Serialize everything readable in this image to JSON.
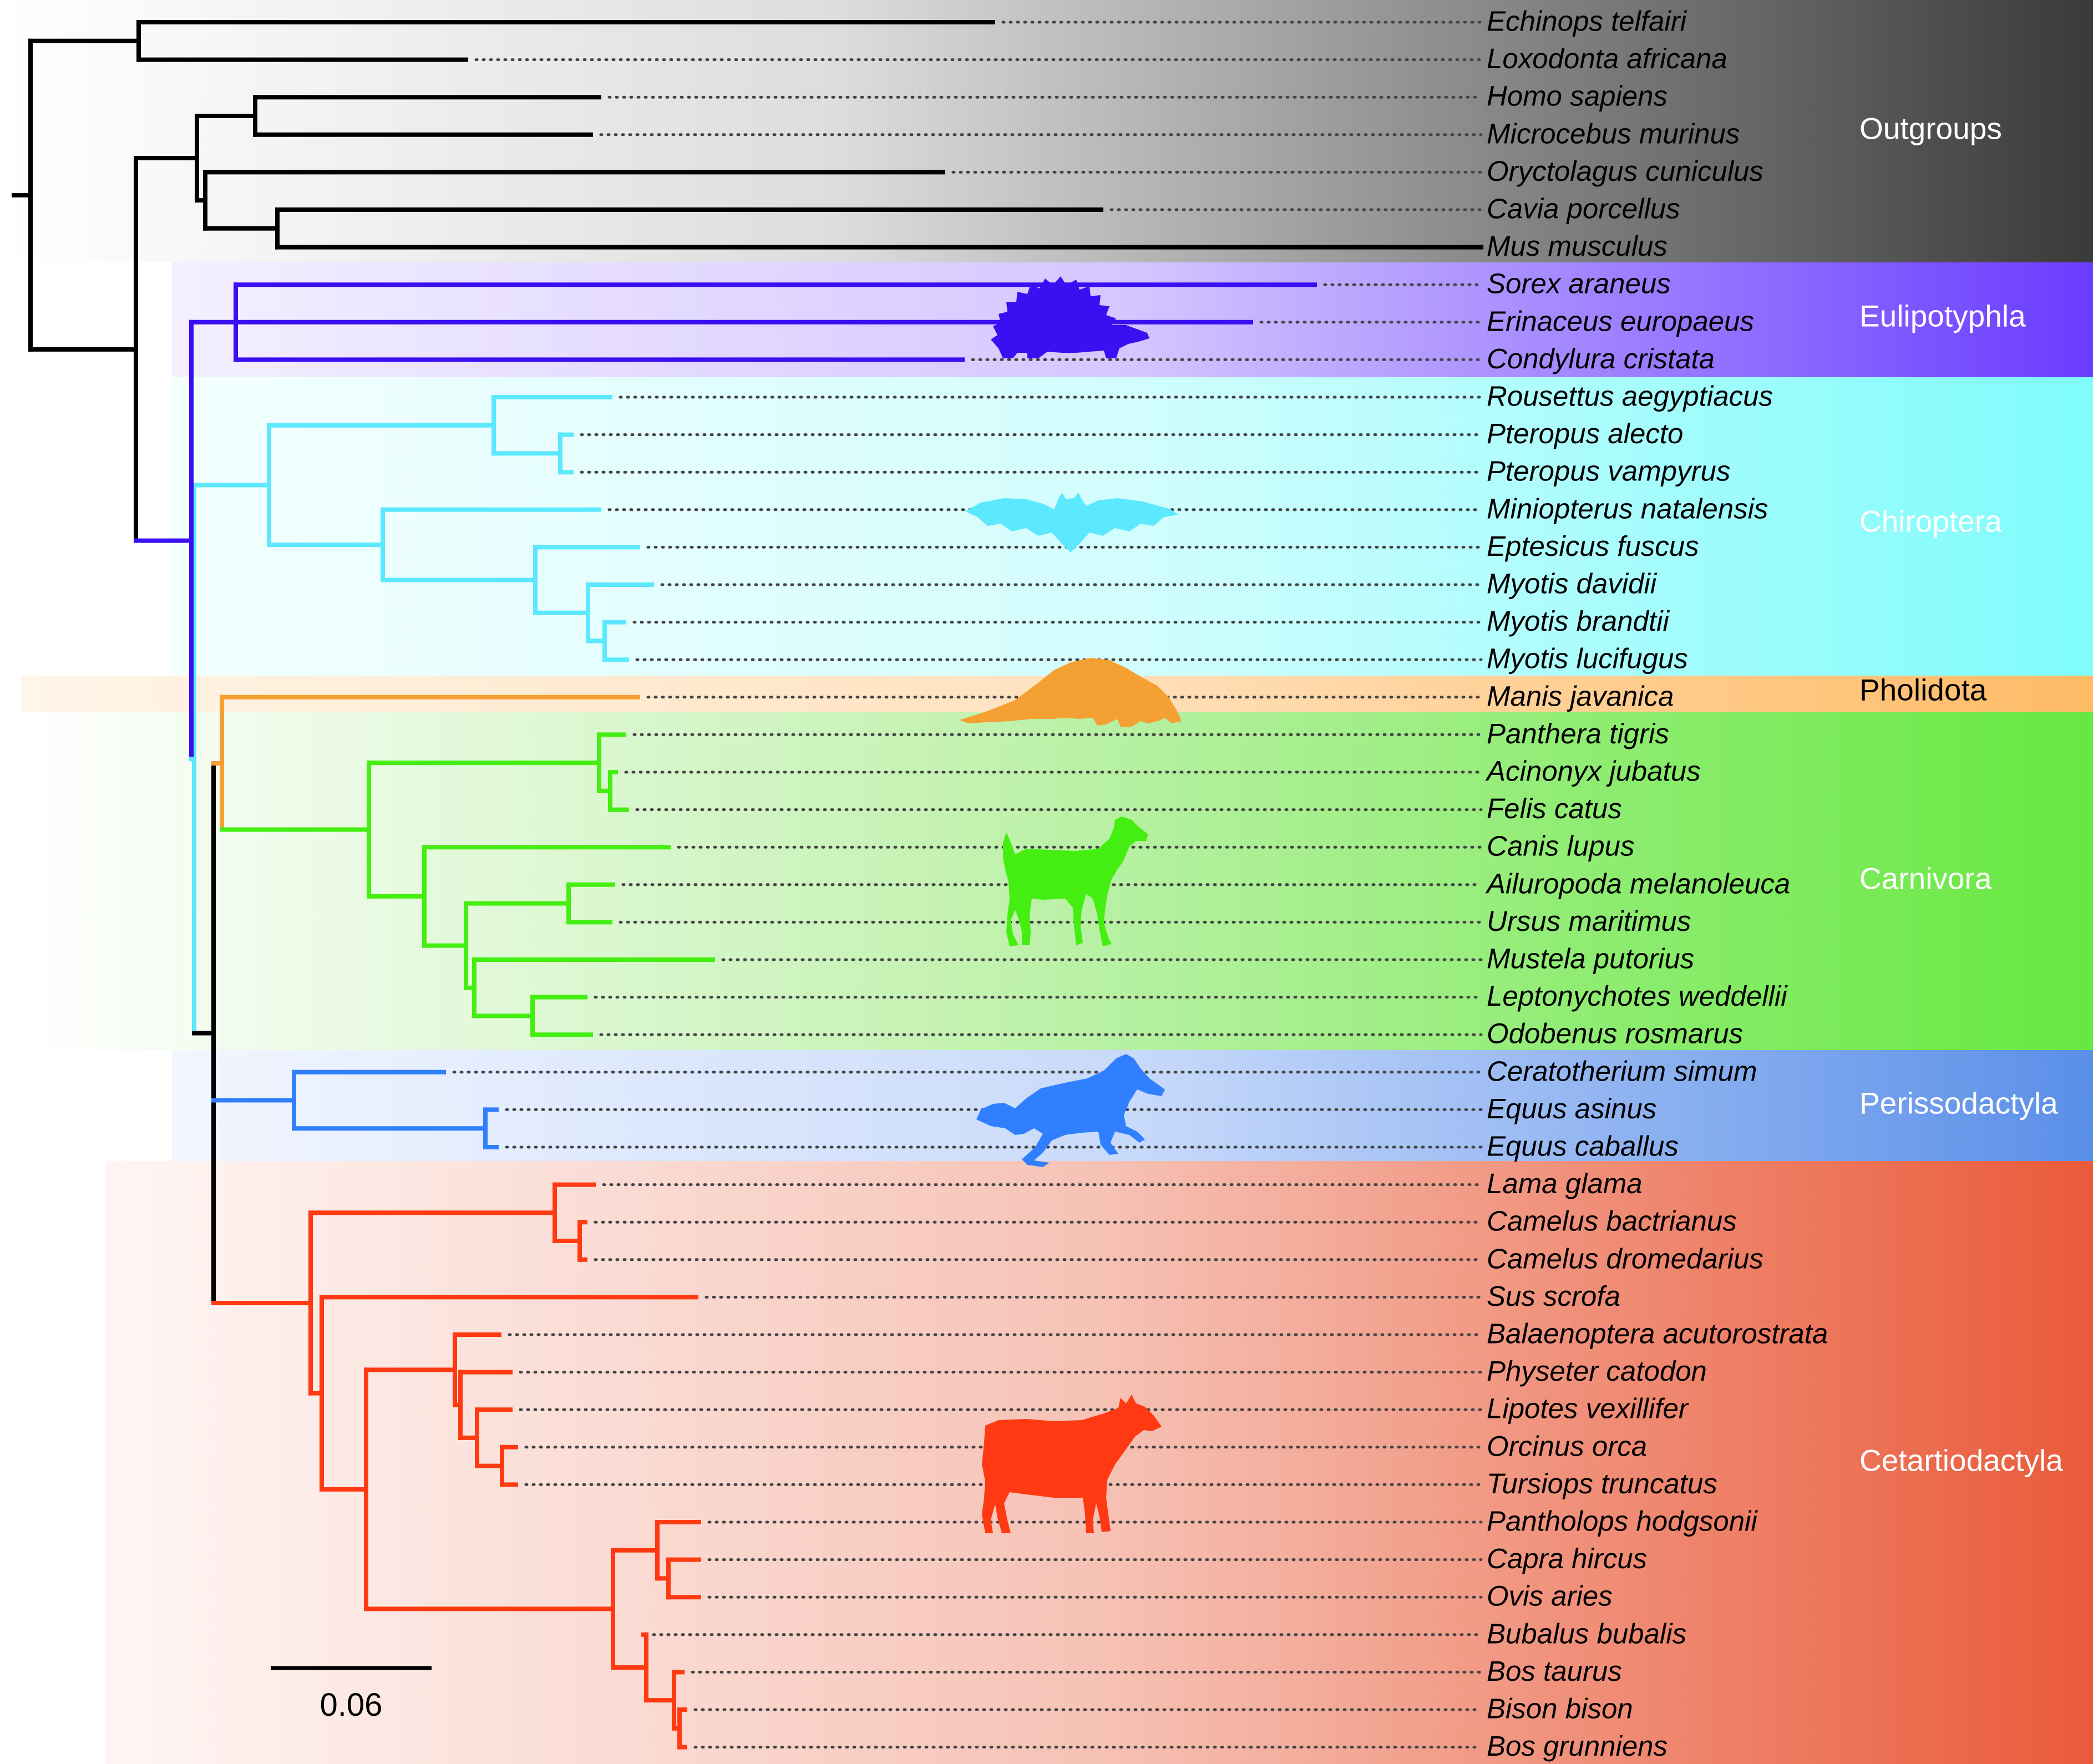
{
  "scale_bar": {
    "label": "0.06"
  },
  "groups": [
    {
      "id": "outgroups",
      "label": "Outgroups",
      "color": "#000000",
      "band_color": "#3a3a3a",
      "label_color": "#ffffff",
      "icon": "none"
    },
    {
      "id": "eulipotyphla",
      "label": "Eulipotyphla",
      "color": "#3a0ff2",
      "band_color": "#6a3cff",
      "label_color": "#ffffff",
      "icon": "hedgehog-silhouette"
    },
    {
      "id": "chiroptera",
      "label": "Chiroptera",
      "color": "#5ce8ff",
      "band_color": "#7ffcfc",
      "label_color": "#ffffff",
      "icon": "bat-silhouette"
    },
    {
      "id": "pholidota",
      "label": "Pholidota",
      "color": "#f5a033",
      "band_color": "#ffbb66",
      "label_color": "#000000",
      "icon": "pangolin-silhouette"
    },
    {
      "id": "carnivora",
      "label": "Carnivora",
      "color": "#44ee11",
      "band_color": "#66e840",
      "label_color": "#ffffff",
      "icon": "dog-silhouette"
    },
    {
      "id": "perissodactyla",
      "label": "Perissodactyla",
      "color": "#2f7fff",
      "band_color": "#5a8fe8",
      "label_color": "#ffffff",
      "icon": "horse-silhouette"
    },
    {
      "id": "cetartiodactyla",
      "label": "Cetartiodactyla",
      "color": "#ff3a12",
      "band_color": "#ea5a3a",
      "label_color": "#ffffff",
      "icon": "cow-silhouette"
    }
  ],
  "taxa": [
    {
      "name": "Echinops telfairi",
      "group": "outgroups"
    },
    {
      "name": "Loxodonta africana",
      "group": "outgroups"
    },
    {
      "name": "Homo sapiens",
      "group": "outgroups"
    },
    {
      "name": "Microcebus murinus",
      "group": "outgroups"
    },
    {
      "name": "Oryctolagus cuniculus",
      "group": "outgroups"
    },
    {
      "name": "Cavia porcellus",
      "group": "outgroups"
    },
    {
      "name": "Mus musculus",
      "group": "outgroups"
    },
    {
      "name": "Sorex araneus",
      "group": "eulipotyphla"
    },
    {
      "name": "Erinaceus europaeus",
      "group": "eulipotyphla"
    },
    {
      "name": "Condylura cristata",
      "group": "eulipotyphla"
    },
    {
      "name": "Rousettus aegyptiacus",
      "group": "chiroptera"
    },
    {
      "name": "Pteropus alecto",
      "group": "chiroptera"
    },
    {
      "name": "Pteropus vampyrus",
      "group": "chiroptera"
    },
    {
      "name": "Miniopterus natalensis",
      "group": "chiroptera"
    },
    {
      "name": "Eptesicus fuscus",
      "group": "chiroptera"
    },
    {
      "name": "Myotis davidii",
      "group": "chiroptera"
    },
    {
      "name": "Myotis brandtii",
      "group": "chiroptera"
    },
    {
      "name": "Myotis lucifugus",
      "group": "chiroptera"
    },
    {
      "name": "Manis javanica",
      "group": "pholidota"
    },
    {
      "name": "Panthera tigris",
      "group": "carnivora"
    },
    {
      "name": "Acinonyx jubatus",
      "group": "carnivora"
    },
    {
      "name": "Felis catus",
      "group": "carnivora"
    },
    {
      "name": "Canis lupus",
      "group": "carnivora"
    },
    {
      "name": "Ailuropoda melanoleuca",
      "group": "carnivora"
    },
    {
      "name": "Ursus maritimus",
      "group": "carnivora"
    },
    {
      "name": "Mustela putorius",
      "group": "carnivora"
    },
    {
      "name": "Leptonychotes weddellii",
      "group": "carnivora"
    },
    {
      "name": "Odobenus rosmarus",
      "group": "carnivora"
    },
    {
      "name": "Ceratotherium simum",
      "group": "perissodactyla"
    },
    {
      "name": "Equus asinus",
      "group": "perissodactyla"
    },
    {
      "name": "Equus caballus",
      "group": "perissodactyla"
    },
    {
      "name": "Lama glama",
      "group": "cetartiodactyla"
    },
    {
      "name": "Camelus bactrianus",
      "group": "cetartiodactyla"
    },
    {
      "name": "Camelus dromedarius",
      "group": "cetartiodactyla"
    },
    {
      "name": "Sus scrofa",
      "group": "cetartiodactyla"
    },
    {
      "name": "Balaenoptera acutorostrata",
      "group": "cetartiodactyla"
    },
    {
      "name": "Physeter catodon",
      "group": "cetartiodactyla"
    },
    {
      "name": "Lipotes vexillifer",
      "group": "cetartiodactyla"
    },
    {
      "name": "Orcinus orca",
      "group": "cetartiodactyla"
    },
    {
      "name": "Tursiops truncatus",
      "group": "cetartiodactyla"
    },
    {
      "name": "Pantholops hodgsonii",
      "group": "cetartiodactyla"
    },
    {
      "name": "Capra hircus",
      "group": "cetartiodactyla"
    },
    {
      "name": "Ovis aries",
      "group": "cetartiodactyla"
    },
    {
      "name": "Bubalus bubalis",
      "group": "cetartiodactyla"
    },
    {
      "name": "Bos taurus",
      "group": "cetartiodactyla"
    },
    {
      "name": "Bison bison",
      "group": "cetartiodactyla"
    },
    {
      "name": "Bos grunniens",
      "group": "cetartiodactyla"
    }
  ]
}
